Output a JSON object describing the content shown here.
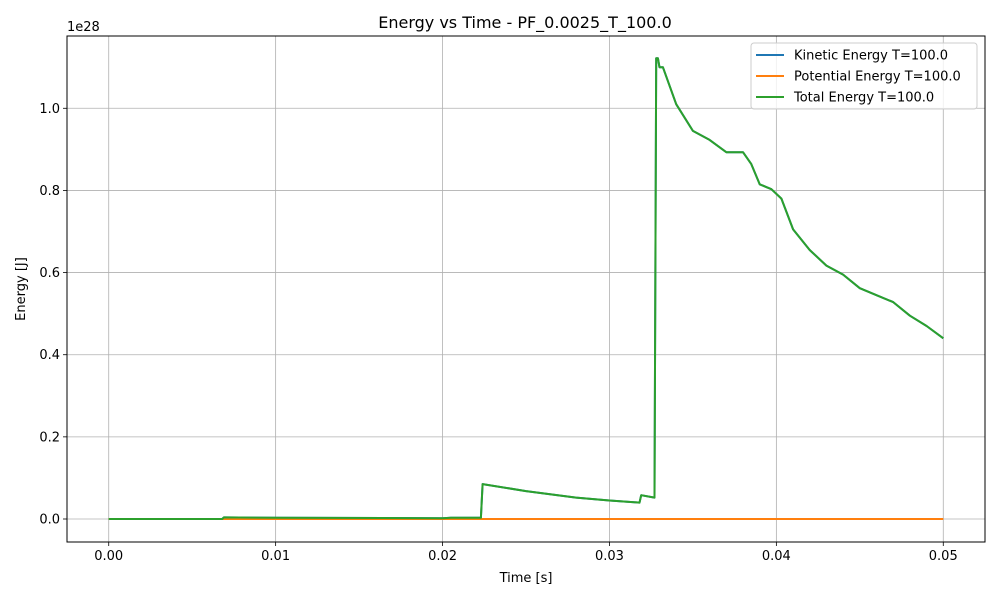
{
  "chart_data": {
    "type": "line",
    "title": "Energy vs Time - PF_0.0025_T_100.0",
    "xlabel": "Time [s]",
    "ylabel": "Energy [J]",
    "y_offset_label": "1e28",
    "xlim": [
      -0.0025,
      0.0525
    ],
    "ylim": [
      -0.056,
      1.176
    ],
    "x_ticks": [
      0.0,
      0.01,
      0.02,
      0.03,
      0.04,
      0.05
    ],
    "x_tick_labels": [
      "0.00",
      "0.01",
      "0.02",
      "0.03",
      "0.04",
      "0.05"
    ],
    "y_ticks": [
      0.0,
      0.2,
      0.4,
      0.6,
      0.8,
      1.0
    ],
    "y_tick_labels": [
      "0.0",
      "0.2",
      "0.4",
      "0.6",
      "0.8",
      "1.0"
    ],
    "grid": true,
    "legend_position": "top-right",
    "series": [
      {
        "name": "Kinetic Energy T=100.0",
        "color": "#1f77b4",
        "x": [
          0.0,
          0.0068,
          0.0069,
          0.01,
          0.02,
          0.0205,
          0.0223,
          0.0224,
          0.025,
          0.028,
          0.03,
          0.0318,
          0.0319,
          0.0327,
          0.0328,
          0.0329,
          0.033,
          0.0332,
          0.034,
          0.035,
          0.036,
          0.037,
          0.038,
          0.0385,
          0.039,
          0.0397,
          0.0403,
          0.041,
          0.042,
          0.043,
          0.044,
          0.045,
          0.046,
          0.047,
          0.048,
          0.049,
          0.05
        ],
        "values": [
          0.0,
          0.0,
          0.004,
          0.003,
          0.002,
          0.003,
          0.003,
          0.085,
          0.068,
          0.052,
          0.045,
          0.04,
          0.058,
          0.052,
          1.122,
          1.122,
          1.1,
          1.1,
          1.01,
          0.945,
          0.923,
          0.893,
          0.893,
          0.864,
          0.815,
          0.803,
          0.78,
          0.705,
          0.655,
          0.617,
          0.595,
          0.562,
          0.545,
          0.528,
          0.495,
          0.47,
          0.44
        ]
      },
      {
        "name": "Potential Energy T=100.0",
        "color": "#ff7f0e",
        "x": [
          0.0,
          0.05
        ],
        "values": [
          0.0,
          0.0
        ]
      },
      {
        "name": "Total Energy T=100.0",
        "color": "#2ca02c",
        "x": [
          0.0,
          0.0068,
          0.0069,
          0.01,
          0.02,
          0.0205,
          0.0223,
          0.0224,
          0.025,
          0.028,
          0.03,
          0.0318,
          0.0319,
          0.0327,
          0.0328,
          0.0329,
          0.033,
          0.0332,
          0.034,
          0.035,
          0.036,
          0.037,
          0.038,
          0.0385,
          0.039,
          0.0397,
          0.0403,
          0.041,
          0.042,
          0.043,
          0.044,
          0.045,
          0.046,
          0.047,
          0.048,
          0.049,
          0.05
        ],
        "values": [
          0.0,
          0.0,
          0.004,
          0.003,
          0.002,
          0.003,
          0.003,
          0.085,
          0.068,
          0.052,
          0.045,
          0.04,
          0.058,
          0.052,
          1.122,
          1.122,
          1.1,
          1.1,
          1.01,
          0.945,
          0.923,
          0.893,
          0.893,
          0.864,
          0.815,
          0.803,
          0.78,
          0.705,
          0.655,
          0.617,
          0.595,
          0.562,
          0.545,
          0.528,
          0.495,
          0.47,
          0.44
        ]
      }
    ]
  }
}
